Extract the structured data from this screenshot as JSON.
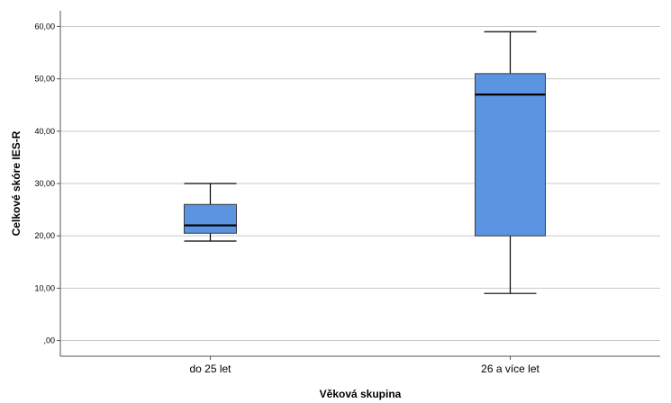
{
  "chart_data": {
    "type": "boxplot",
    "xlabel": "Věková skupina",
    "ylabel": "Celkové skóre IES-R",
    "ylim": [
      -3,
      63
    ],
    "yticks": [
      0,
      10,
      20,
      30,
      40,
      50,
      60
    ],
    "ytick_labels": [
      ",00",
      "10,00",
      "20,00",
      "30,00",
      "40,00",
      "50,00",
      "60,00"
    ],
    "grid": true,
    "box_color": "#5b94e0",
    "categories": [
      "do 25 let",
      "26 a více let"
    ],
    "boxes": [
      {
        "category": "do 25 let",
        "min": 19,
        "q1": 20.5,
        "median": 22,
        "q3": 26,
        "max": 30
      },
      {
        "category": "26 a více let",
        "min": 9,
        "q1": 20,
        "median": 47,
        "q3": 51,
        "max": 59
      }
    ]
  }
}
